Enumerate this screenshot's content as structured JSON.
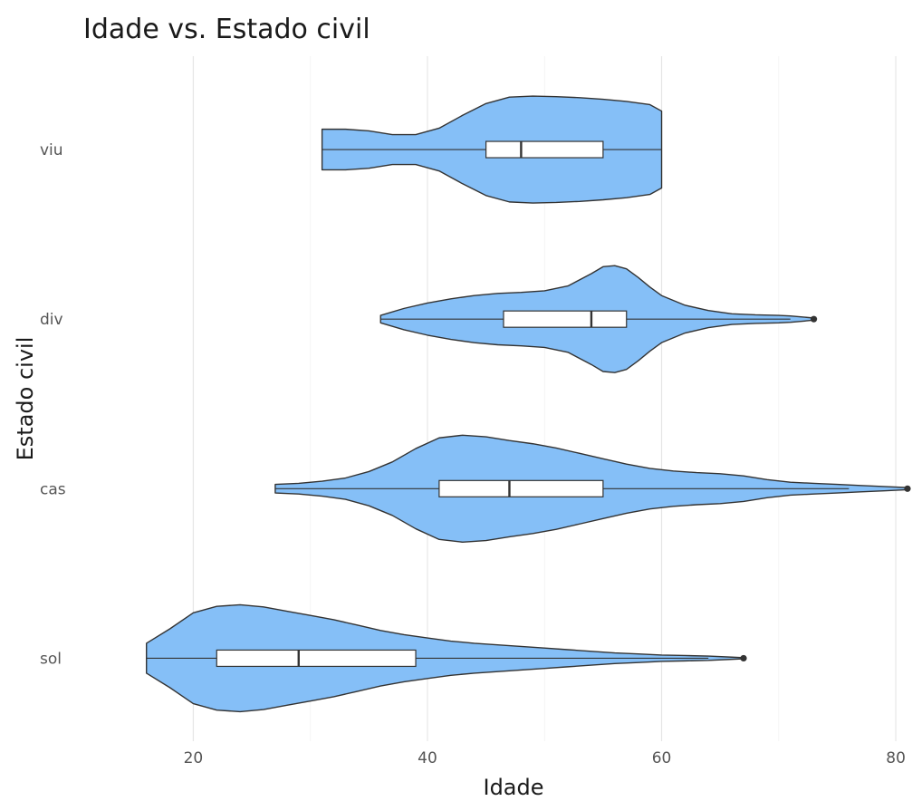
{
  "chart_data": {
    "type": "violin",
    "title": "Idade vs. Estado civil",
    "xlabel": "Idade",
    "ylabel": "Estado civil",
    "xlim": [
      12,
      81
    ],
    "xticks": [
      20,
      40,
      60,
      80
    ],
    "categories": [
      "sol",
      "cas",
      "div",
      "viu"
    ],
    "fill_color": "#85BFF7",
    "outline_color": "#333333",
    "grid": true,
    "series": [
      {
        "name": "sol",
        "box": {
          "whisker_low": 16,
          "q1": 22,
          "median": 29,
          "q3": 39,
          "whisker_high": 64
        },
        "outliers": [
          67
        ],
        "density": [
          [
            16,
            0.28
          ],
          [
            18,
            0.55
          ],
          [
            20,
            0.85
          ],
          [
            22,
            0.97
          ],
          [
            24,
            1.0
          ],
          [
            26,
            0.96
          ],
          [
            28,
            0.88
          ],
          [
            30,
            0.8
          ],
          [
            32,
            0.72
          ],
          [
            34,
            0.62
          ],
          [
            36,
            0.52
          ],
          [
            38,
            0.44
          ],
          [
            40,
            0.38
          ],
          [
            42,
            0.32
          ],
          [
            44,
            0.28
          ],
          [
            46,
            0.25
          ],
          [
            48,
            0.22
          ],
          [
            50,
            0.19
          ],
          [
            52,
            0.16
          ],
          [
            54,
            0.13
          ],
          [
            56,
            0.1
          ],
          [
            58,
            0.08
          ],
          [
            60,
            0.06
          ],
          [
            62,
            0.05
          ],
          [
            64,
            0.04
          ],
          [
            66,
            0.02
          ],
          [
            67,
            0.01
          ]
        ]
      },
      {
        "name": "cas",
        "box": {
          "whisker_low": 27,
          "q1": 41,
          "median": 47,
          "q3": 55,
          "whisker_high": 76
        },
        "outliers": [
          81
        ],
        "density": [
          [
            27,
            0.08
          ],
          [
            29,
            0.1
          ],
          [
            31,
            0.14
          ],
          [
            33,
            0.2
          ],
          [
            35,
            0.32
          ],
          [
            37,
            0.5
          ],
          [
            39,
            0.75
          ],
          [
            41,
            0.95
          ],
          [
            43,
            1.0
          ],
          [
            45,
            0.97
          ],
          [
            47,
            0.9
          ],
          [
            49,
            0.84
          ],
          [
            51,
            0.76
          ],
          [
            53,
            0.66
          ],
          [
            55,
            0.56
          ],
          [
            57,
            0.46
          ],
          [
            59,
            0.38
          ],
          [
            61,
            0.33
          ],
          [
            63,
            0.3
          ],
          [
            65,
            0.28
          ],
          [
            67,
            0.24
          ],
          [
            69,
            0.17
          ],
          [
            71,
            0.12
          ],
          [
            73,
            0.1
          ],
          [
            75,
            0.08
          ],
          [
            77,
            0.06
          ],
          [
            79,
            0.04
          ],
          [
            81,
            0.02
          ]
        ]
      },
      {
        "name": "div",
        "box": {
          "whisker_low": 36,
          "q1": 46.5,
          "median": 54,
          "q3": 57,
          "whisker_high": 71
        },
        "outliers": [
          73
        ],
        "density": [
          [
            36,
            0.07
          ],
          [
            38,
            0.2
          ],
          [
            40,
            0.3
          ],
          [
            42,
            0.38
          ],
          [
            44,
            0.44
          ],
          [
            46,
            0.48
          ],
          [
            48,
            0.5
          ],
          [
            50,
            0.53
          ],
          [
            52,
            0.62
          ],
          [
            54,
            0.85
          ],
          [
            55,
            0.98
          ],
          [
            56,
            1.0
          ],
          [
            57,
            0.94
          ],
          [
            58,
            0.78
          ],
          [
            59,
            0.6
          ],
          [
            60,
            0.44
          ],
          [
            62,
            0.26
          ],
          [
            64,
            0.16
          ],
          [
            66,
            0.1
          ],
          [
            68,
            0.08
          ],
          [
            70,
            0.07
          ],
          [
            71,
            0.06
          ],
          [
            72,
            0.04
          ],
          [
            73,
            0.02
          ]
        ]
      },
      {
        "name": "viu",
        "box": {
          "whisker_low": 31,
          "q1": 45,
          "median": 48,
          "q3": 55,
          "whisker_high": 60
        },
        "outliers": [],
        "density": [
          [
            31,
            0.38
          ],
          [
            33,
            0.38
          ],
          [
            35,
            0.35
          ],
          [
            37,
            0.28
          ],
          [
            39,
            0.28
          ],
          [
            41,
            0.4
          ],
          [
            43,
            0.64
          ],
          [
            45,
            0.86
          ],
          [
            47,
            0.98
          ],
          [
            49,
            1.0
          ],
          [
            51,
            0.99
          ],
          [
            53,
            0.97
          ],
          [
            55,
            0.94
          ],
          [
            57,
            0.9
          ],
          [
            59,
            0.84
          ],
          [
            60,
            0.72
          ]
        ]
      }
    ]
  }
}
